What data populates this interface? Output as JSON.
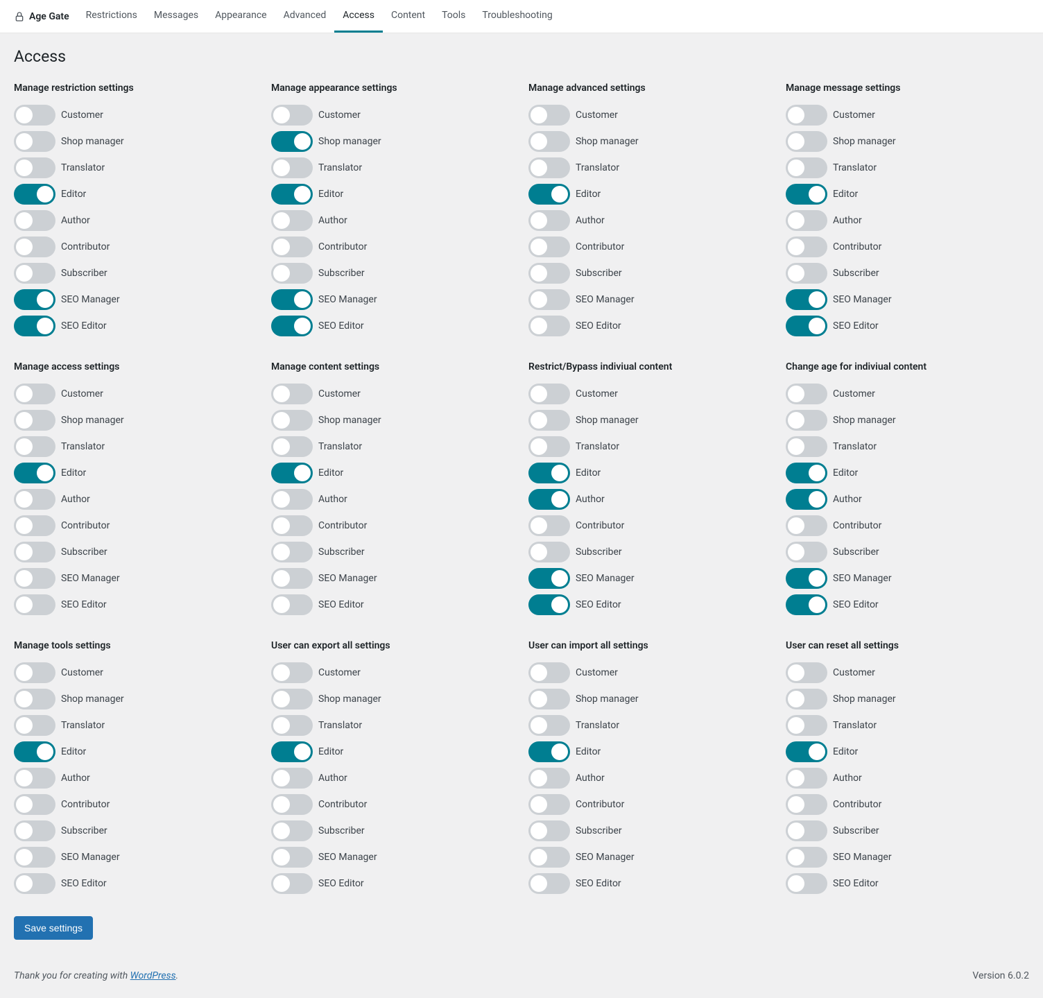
{
  "plugin_title": "Age Gate",
  "tabs": [
    {
      "label": "Restrictions",
      "active": false
    },
    {
      "label": "Messages",
      "active": false
    },
    {
      "label": "Appearance",
      "active": false
    },
    {
      "label": "Advanced",
      "active": false
    },
    {
      "label": "Access",
      "active": true
    },
    {
      "label": "Content",
      "active": false
    },
    {
      "label": "Tools",
      "active": false
    },
    {
      "label": "Troubleshooting",
      "active": false
    }
  ],
  "page_title": "Access",
  "roles": [
    "Customer",
    "Shop manager",
    "Translator",
    "Editor",
    "Author",
    "Contributor",
    "Subscriber",
    "SEO Manager",
    "SEO Editor"
  ],
  "sections": [
    {
      "title": "Manage restriction settings",
      "on": [
        false,
        false,
        false,
        true,
        false,
        false,
        false,
        true,
        true
      ]
    },
    {
      "title": "Manage appearance settings",
      "on": [
        false,
        true,
        false,
        true,
        false,
        false,
        false,
        true,
        true
      ]
    },
    {
      "title": "Manage advanced settings",
      "on": [
        false,
        false,
        false,
        true,
        false,
        false,
        false,
        false,
        false
      ]
    },
    {
      "title": "Manage message settings",
      "on": [
        false,
        false,
        false,
        true,
        false,
        false,
        false,
        true,
        true
      ]
    },
    {
      "title": "Manage access settings",
      "on": [
        false,
        false,
        false,
        true,
        false,
        false,
        false,
        false,
        false
      ]
    },
    {
      "title": "Manage content settings",
      "on": [
        false,
        false,
        false,
        true,
        false,
        false,
        false,
        false,
        false
      ]
    },
    {
      "title": "Restrict/Bypass indiviual content",
      "on": [
        false,
        false,
        false,
        true,
        true,
        false,
        false,
        true,
        true
      ]
    },
    {
      "title": "Change age for indiviual content",
      "on": [
        false,
        false,
        false,
        true,
        true,
        false,
        false,
        true,
        true
      ]
    },
    {
      "title": "Manage tools settings",
      "on": [
        false,
        false,
        false,
        true,
        false,
        false,
        false,
        false,
        false
      ]
    },
    {
      "title": "User can export all settings",
      "on": [
        false,
        false,
        false,
        true,
        false,
        false,
        false,
        false,
        false
      ]
    },
    {
      "title": "User can import all settings",
      "on": [
        false,
        false,
        false,
        true,
        false,
        false,
        false,
        false,
        false
      ]
    },
    {
      "title": "User can reset all settings",
      "on": [
        false,
        false,
        false,
        true,
        false,
        false,
        false,
        false,
        false
      ]
    }
  ],
  "save_label": "Save settings",
  "footer_prefix": "Thank you for creating with ",
  "footer_link_text": "WordPress",
  "footer_suffix": ".",
  "version_label": "Version 6.0.2",
  "colors": {
    "toggle_on": "#007e91",
    "toggle_off": "#ccd0d4",
    "primary_button": "#2271b1",
    "link": "#2271b1",
    "bg": "#f0f0f1"
  }
}
